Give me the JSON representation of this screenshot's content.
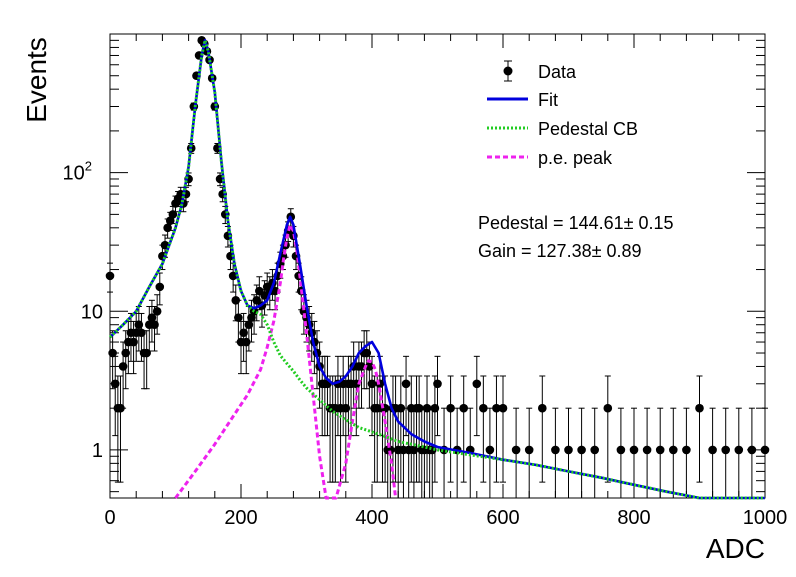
{
  "chart_data": {
    "type": "scatter",
    "title": "",
    "xlabel": "ADC",
    "ylabel": "Events",
    "xlim": [
      0,
      1000
    ],
    "ylim": [
      0.45,
      1000
    ],
    "y_scale": "log",
    "x_ticks": [
      {
        "value": 0,
        "label": "0"
      },
      {
        "value": 200,
        "label": "200"
      },
      {
        "value": 400,
        "label": "400"
      },
      {
        "value": 600,
        "label": "600"
      },
      {
        "value": 800,
        "label": "800"
      },
      {
        "value": 1000,
        "label": "1000"
      }
    ],
    "y_ticks": [
      {
        "value": 1,
        "label": "1"
      },
      {
        "value": 10,
        "label": "10"
      },
      {
        "value": 100,
        "label": "10",
        "exp": "2"
      }
    ],
    "legend_position": "top-right",
    "legend": [
      {
        "name": "Data",
        "style": "marker",
        "color": "#000000"
      },
      {
        "name": "Fit",
        "style": "solid",
        "color": "#0000dd"
      },
      {
        "name": "Pedestal CB",
        "style": "dotted",
        "color": "#22cc22"
      },
      {
        "name": "p.e. peak",
        "style": "dashed",
        "color": "#ee22ee"
      }
    ],
    "annotations": [
      {
        "text": "Pedestal = 144.61± 0.15"
      },
      {
        "text": "Gain = 127.38± 0.89"
      }
    ],
    "data_points": {
      "x": [
        0,
        4,
        8,
        12,
        16,
        20,
        24,
        28,
        32,
        36,
        40,
        44,
        48,
        52,
        56,
        60,
        64,
        68,
        72,
        76,
        80,
        84,
        88,
        92,
        96,
        100,
        104,
        108,
        112,
        116,
        120,
        124,
        128,
        132,
        136,
        140,
        144,
        148,
        152,
        156,
        160,
        164,
        168,
        172,
        176,
        180,
        184,
        188,
        192,
        196,
        200,
        204,
        208,
        212,
        216,
        220,
        224,
        228,
        232,
        236,
        240,
        244,
        248,
        252,
        256,
        260,
        264,
        268,
        272,
        276,
        280,
        284,
        288,
        292,
        296,
        300,
        304,
        308,
        312,
        316,
        320,
        324,
        328,
        332,
        336,
        340,
        344,
        348,
        352,
        356,
        360,
        364,
        368,
        372,
        376,
        380,
        384,
        388,
        392,
        396,
        400,
        404,
        408,
        412,
        416,
        420,
        424,
        428,
        432,
        436,
        440,
        444,
        448,
        452,
        456,
        460,
        464,
        468,
        472,
        476,
        480,
        484,
        488,
        492,
        496,
        500,
        510,
        520,
        530,
        540,
        550,
        560,
        570,
        580,
        590,
        600,
        620,
        640,
        660,
        680,
        700,
        720,
        740,
        760,
        780,
        800,
        820,
        840,
        860,
        880,
        900,
        920,
        940,
        960,
        980,
        1000
      ],
      "y": [
        18,
        5,
        3,
        2,
        2,
        4,
        5,
        6,
        7,
        6,
        7,
        8,
        7,
        5,
        5,
        8,
        9,
        8,
        10,
        15,
        25,
        30,
        40,
        45,
        50,
        60,
        65,
        70,
        60,
        70,
        90,
        150,
        300,
        500,
        700,
        900,
        850,
        750,
        650,
        480,
        300,
        150,
        90,
        70,
        50,
        35,
        25,
        18,
        12,
        9,
        6,
        7,
        6,
        8,
        9,
        10,
        12,
        14,
        11,
        13,
        15,
        14,
        16,
        14,
        18,
        22,
        25,
        30,
        38,
        48,
        35,
        25,
        18,
        14,
        10,
        9,
        8,
        7,
        6,
        5,
        4,
        3,
        3,
        3,
        2,
        2,
        2,
        3,
        2,
        3,
        2,
        3,
        3,
        4,
        3,
        4,
        4,
        5,
        5,
        4,
        3,
        2,
        2,
        3,
        2,
        2,
        1,
        1,
        2,
        2,
        1,
        2,
        1,
        3,
        1,
        2,
        1,
        2,
        2,
        1,
        1,
        2,
        1,
        1,
        2,
        3,
        1,
        2,
        1,
        2,
        1,
        3,
        2,
        1,
        2,
        2,
        1,
        1,
        2,
        1,
        1,
        1,
        1,
        2,
        1,
        1,
        1,
        1,
        1,
        1,
        2,
        1,
        1,
        1,
        1,
        1
      ]
    },
    "series": [
      {
        "name": "Fit",
        "x": [
          0,
          20,
          40,
          60,
          80,
          100,
          110,
          120,
          130,
          140,
          145,
          150,
          160,
          170,
          180,
          190,
          200,
          210,
          220,
          230,
          240,
          250,
          260,
          270,
          275,
          280,
          290,
          300,
          310,
          320,
          330,
          340,
          350,
          360,
          370,
          380,
          390,
          400,
          410,
          420,
          430,
          440,
          460,
          480,
          500,
          550,
          600,
          650,
          700,
          750,
          800,
          850,
          900,
          950,
          1000
        ],
        "y": [
          6.5,
          8,
          10,
          15,
          22,
          40,
          60,
          110,
          300,
          700,
          900,
          750,
          380,
          120,
          45,
          22,
          14,
          11,
          10.5,
          11,
          12,
          16,
          26,
          42,
          48,
          42,
          22,
          11,
          6,
          4,
          3.3,
          3,
          3.1,
          3.4,
          4,
          5,
          5.6,
          6,
          5,
          3,
          2,
          1.6,
          1.3,
          1.15,
          1.05,
          0.95,
          0.85,
          0.78,
          0.7,
          0.63,
          0.56,
          0.5,
          0.45,
          0.4,
          0.35
        ]
      },
      {
        "name": "Pedestal CB",
        "x": [
          0,
          20,
          40,
          60,
          80,
          100,
          110,
          120,
          130,
          140,
          145,
          150,
          160,
          170,
          180,
          190,
          200,
          210,
          220,
          230,
          240,
          250,
          260,
          270,
          280,
          290,
          300,
          320,
          340,
          360,
          380,
          400,
          420,
          440,
          460,
          480,
          500,
          550,
          600,
          650,
          700,
          750,
          800,
          850,
          900,
          950,
          1000
        ],
        "y": [
          6.5,
          8,
          10,
          15,
          22,
          40,
          60,
          110,
          300,
          700,
          900,
          750,
          380,
          120,
          45,
          22,
          14,
          11,
          10,
          9.5,
          8,
          6,
          4.8,
          4.2,
          3.7,
          3.2,
          2.8,
          2.3,
          1.9,
          1.65,
          1.45,
          1.35,
          1.25,
          1.15,
          1.1,
          1.05,
          1,
          0.92,
          0.85,
          0.78,
          0.7,
          0.63,
          0.56,
          0.5,
          0.45,
          0.4,
          0.35
        ]
      },
      {
        "name": "p.e. peak",
        "x": [
          100,
          130,
          160,
          190,
          210,
          230,
          240,
          250,
          260,
          265,
          270,
          275,
          280,
          285,
          290,
          300,
          310,
          320,
          330,
          345,
          360,
          370,
          380,
          390,
          395,
          400,
          405,
          410,
          420,
          430,
          436
        ],
        "y": [
          0.45,
          0.7,
          1.1,
          1.8,
          2.5,
          3.8,
          5.5,
          8.5,
          16,
          24,
          34,
          42,
          38,
          28,
          18,
          7,
          2.5,
          0.9,
          0.45,
          0.45,
          0.8,
          1.6,
          3,
          4,
          4.4,
          4.3,
          3.8,
          3,
          1.6,
          0.8,
          0.45
        ]
      }
    ]
  }
}
